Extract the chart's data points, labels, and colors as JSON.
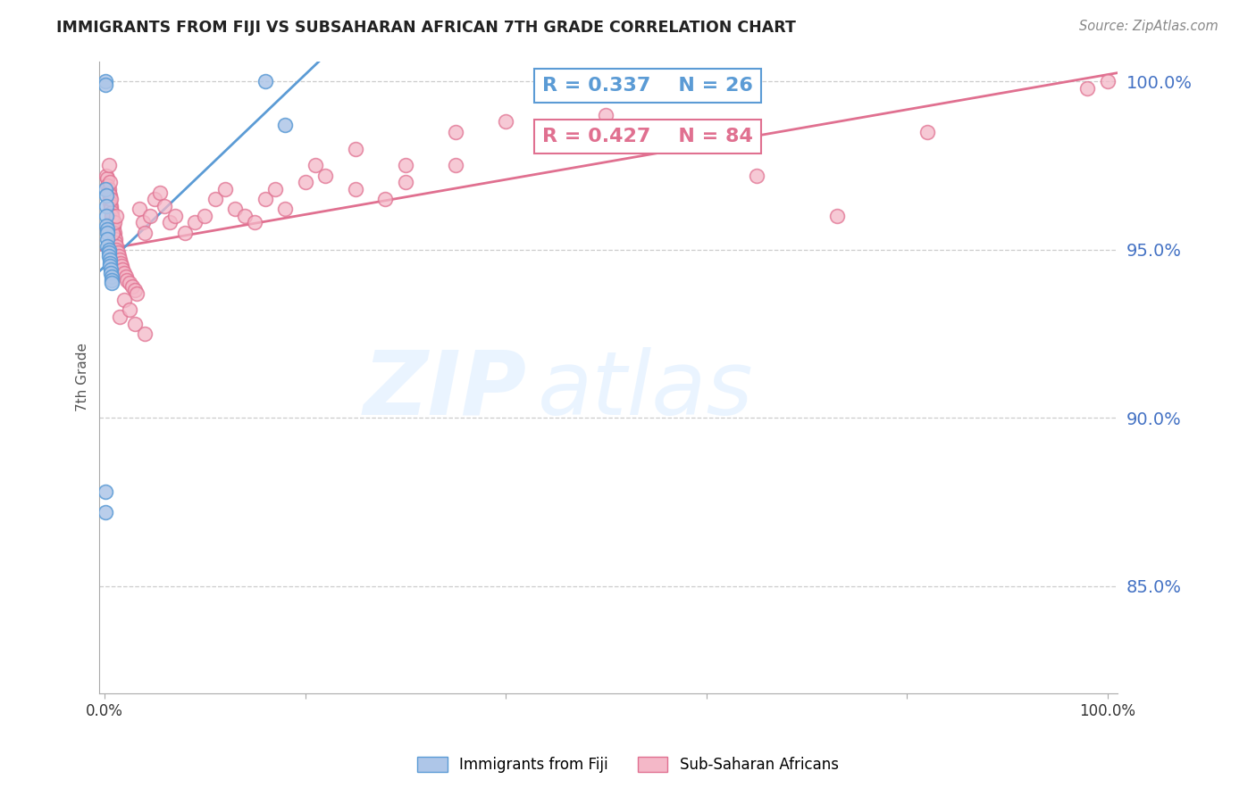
{
  "title": "IMMIGRANTS FROM FIJI VS SUBSAHARAN AFRICAN 7TH GRADE CORRELATION CHART",
  "source": "Source: ZipAtlas.com",
  "ylabel": "7th Grade",
  "fiji_color": "#aec6e8",
  "fiji_edge_color": "#5b9bd5",
  "subsaharan_color": "#f4b8c8",
  "subsaharan_edge_color": "#e07090",
  "fiji_R": 0.337,
  "fiji_N": 26,
  "subsaharan_R": 0.427,
  "subsaharan_N": 84,
  "legend_fiji_label": "Immigrants from Fiji",
  "legend_subsaharan_label": "Sub-Saharan Africans",
  "grid_color": "#cccccc",
  "tick_color": "#4472c4",
  "fiji_x": [
    0.001,
    0.001,
    0.001,
    0.002,
    0.002,
    0.002,
    0.002,
    0.003,
    0.003,
    0.003,
    0.003,
    0.004,
    0.004,
    0.004,
    0.005,
    0.005,
    0.005,
    0.006,
    0.006,
    0.007,
    0.007,
    0.007,
    0.001,
    0.001,
    0.16,
    0.18
  ],
  "fiji_y": [
    1.0,
    0.999,
    0.968,
    0.966,
    0.963,
    0.96,
    0.957,
    0.956,
    0.955,
    0.953,
    0.951,
    0.95,
    0.949,
    0.948,
    0.947,
    0.946,
    0.945,
    0.944,
    0.943,
    0.942,
    0.941,
    0.94,
    0.878,
    0.872,
    1.0,
    0.987
  ],
  "subsaharan_x": [
    0.002,
    0.003,
    0.003,
    0.004,
    0.004,
    0.005,
    0.005,
    0.005,
    0.006,
    0.006,
    0.007,
    0.007,
    0.008,
    0.008,
    0.009,
    0.009,
    0.01,
    0.01,
    0.011,
    0.011,
    0.012,
    0.012,
    0.013,
    0.014,
    0.015,
    0.016,
    0.017,
    0.018,
    0.02,
    0.021,
    0.022,
    0.025,
    0.028,
    0.03,
    0.032,
    0.035,
    0.038,
    0.04,
    0.045,
    0.05,
    0.055,
    0.06,
    0.065,
    0.07,
    0.08,
    0.09,
    0.1,
    0.11,
    0.12,
    0.13,
    0.14,
    0.15,
    0.16,
    0.17,
    0.18,
    0.2,
    0.21,
    0.22,
    0.25,
    0.28,
    0.3,
    0.35,
    0.004,
    0.005,
    0.006,
    0.007,
    0.008,
    0.01,
    0.012,
    0.015,
    0.02,
    0.025,
    0.03,
    0.04,
    0.25,
    0.3,
    0.35,
    0.4,
    0.5,
    0.65,
    0.73,
    0.82,
    0.98,
    1.0
  ],
  "subsaharan_y": [
    0.972,
    0.971,
    0.969,
    0.968,
    0.967,
    0.966,
    0.965,
    0.964,
    0.963,
    0.962,
    0.961,
    0.96,
    0.959,
    0.958,
    0.957,
    0.956,
    0.955,
    0.954,
    0.953,
    0.952,
    0.951,
    0.95,
    0.949,
    0.948,
    0.947,
    0.946,
    0.945,
    0.944,
    0.943,
    0.942,
    0.941,
    0.94,
    0.939,
    0.938,
    0.937,
    0.962,
    0.958,
    0.955,
    0.96,
    0.965,
    0.967,
    0.963,
    0.958,
    0.96,
    0.955,
    0.958,
    0.96,
    0.965,
    0.968,
    0.962,
    0.96,
    0.958,
    0.965,
    0.968,
    0.962,
    0.97,
    0.975,
    0.972,
    0.968,
    0.965,
    0.97,
    0.975,
    0.975,
    0.97,
    0.965,
    0.96,
    0.955,
    0.958,
    0.96,
    0.93,
    0.935,
    0.932,
    0.928,
    0.925,
    0.98,
    0.975,
    0.985,
    0.988,
    0.99,
    0.972,
    0.96,
    0.985,
    0.998,
    1.0
  ],
  "fiji_line_x": [
    0.0,
    0.2
  ],
  "fiji_line_y": [
    0.945,
    1.002
  ],
  "ssa_line_x": [
    0.0,
    1.0
  ],
  "ssa_line_y": [
    0.95,
    1.002
  ],
  "xlim": [
    -0.005,
    1.01
  ],
  "ylim": [
    0.818,
    1.006
  ],
  "yticks": [
    0.85,
    0.9,
    0.95,
    1.0
  ],
  "ytick_labels": [
    "85.0%",
    "90.0%",
    "95.0%",
    "100.0%"
  ]
}
